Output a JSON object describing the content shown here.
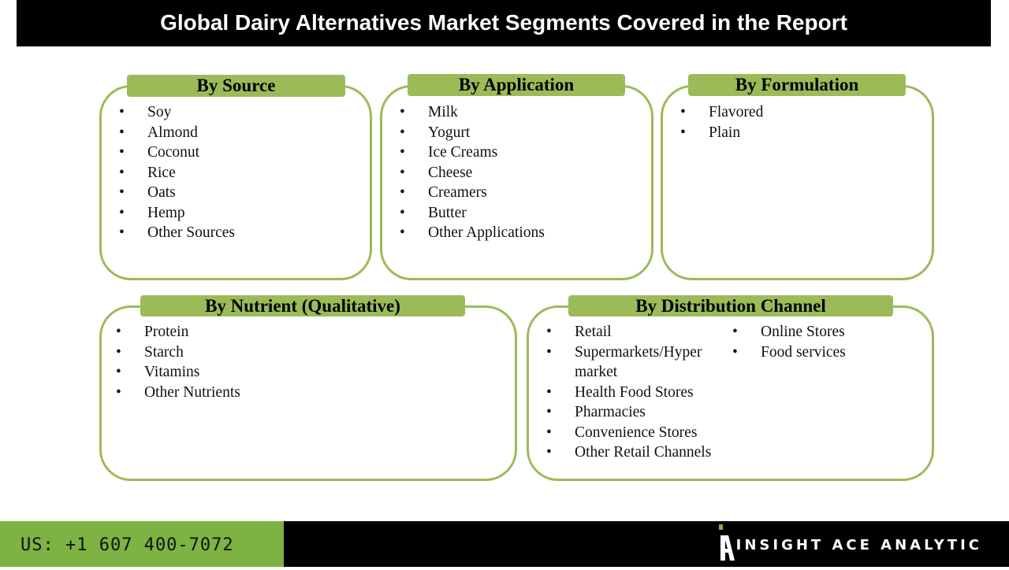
{
  "title": "Global Dairy Alternatives Market Segments Covered in the Report",
  "colors": {
    "accent": "#9bbb59",
    "footer_green": "#7cb342"
  },
  "segments": {
    "source": {
      "title": "By Source",
      "items": [
        "Soy",
        "Almond",
        "Coconut",
        "Rice",
        "Oats",
        "Hemp",
        "Other Sources"
      ]
    },
    "application": {
      "title": "By Application",
      "items": [
        "Milk",
        "Yogurt",
        "Ice Creams",
        "Cheese",
        "Creamers",
        "Butter",
        "Other Applications"
      ]
    },
    "formulation": {
      "title": "By Formulation",
      "items": [
        "Flavored",
        "Plain"
      ]
    },
    "nutrient": {
      "title": "By Nutrient (Qualitative)",
      "items": [
        "Protein",
        "Starch",
        "Vitamins",
        "Other Nutrients"
      ]
    },
    "distribution": {
      "title": "By Distribution Channel",
      "items": [
        "Retail",
        "Supermarkets/Hyper market",
        "Health Food Stores",
        "Pharmacies",
        "Convenience Stores",
        "Other Retail Channels"
      ],
      "items2": [
        "Online Stores",
        "Food services"
      ]
    }
  },
  "footer": {
    "phone": "US: +1 607 400-7072",
    "brand": "INSIGHT ACE ANALYTIC",
    "logo_icon": "insight-ace-logo-icon"
  }
}
